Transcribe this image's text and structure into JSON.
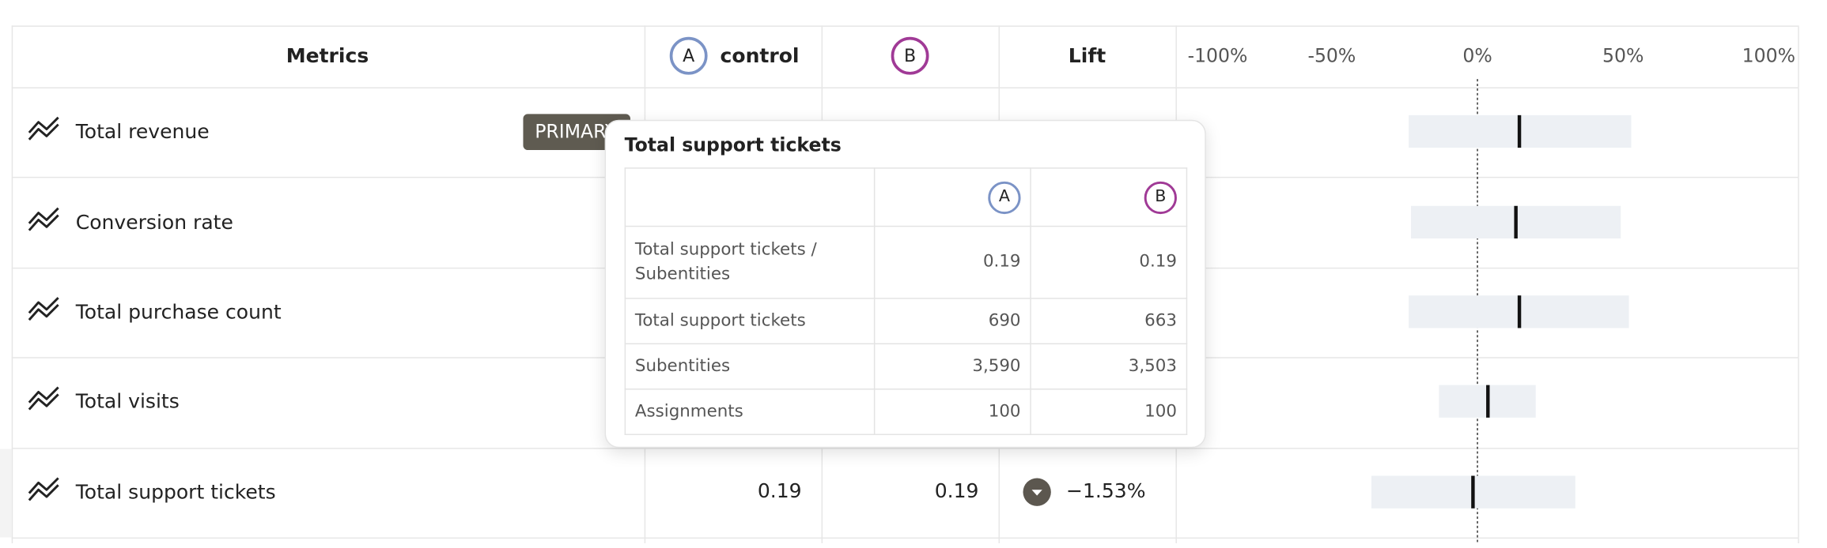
{
  "header": {
    "metrics": "Metrics",
    "variant_a_badge": "A",
    "variant_a_name": "control",
    "variant_b_badge": "B",
    "lift": "Lift"
  },
  "table": {
    "primary_badge": "PRIMARY",
    "last_row": {
      "control": "0.19",
      "variant_b": "0.19",
      "lift": "−1.53%"
    }
  },
  "chart_data": {
    "type": "interval",
    "categories": [
      "Total revenue",
      "Conversion rate",
      "Total purchase count",
      "Total visits",
      "Total support tickets"
    ],
    "lower": [
      -23.6,
      -22.8,
      -23.6,
      -13.2,
      -36.4
    ],
    "upper": [
      52.8,
      49.2,
      52,
      20,
      33.6
    ],
    "point": [
      14.4,
      13.2,
      14.4,
      3.6,
      -1.53
    ],
    "xlim": [
      -100,
      100
    ],
    "xticks": [
      {
        "value": -100,
        "label": "-100%"
      },
      {
        "value": -50,
        "label": "-50%"
      },
      {
        "value": 0,
        "label": "0%"
      },
      {
        "value": 50,
        "label": "50%"
      },
      {
        "value": 100,
        "label": "100%"
      }
    ]
  },
  "tooltip": {
    "title": "Total support tickets",
    "header": [
      "A",
      "B"
    ],
    "rows": [
      [
        "Total support tickets / Subentities",
        "0.19",
        "0.19"
      ],
      [
        "Total support tickets",
        "690",
        "663"
      ],
      [
        "Subentities",
        "3,590",
        "3,503"
      ],
      [
        "Assignments",
        "100",
        "100"
      ]
    ]
  }
}
